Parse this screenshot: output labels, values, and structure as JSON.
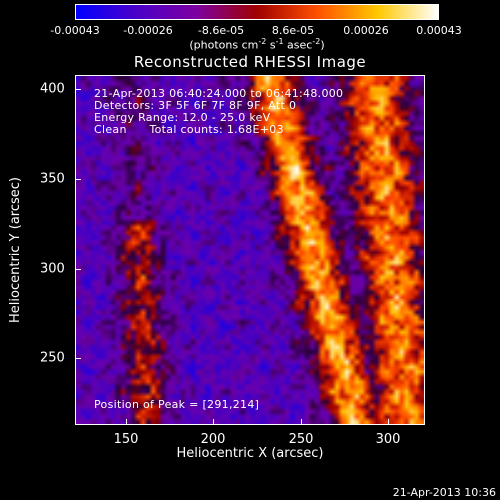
{
  "colorbar": {
    "ticks": [
      "-0.00043",
      "-0.00026",
      "-8.6e-05",
      "8.6e-05",
      "0.00026",
      "0.00043"
    ],
    "units_main": "(photons cm",
    "units_exp1": "-2",
    "units_mid": " s",
    "units_exp2": "-1",
    "units_mid2": " asec",
    "units_exp3": "-2",
    "units_end": ")",
    "colors": [
      "#0000ff",
      "#4b00c8",
      "#7d00a0",
      "#a00000",
      "#ff5000",
      "#ffc800",
      "#ffffff"
    ]
  },
  "title": "Reconstructed RHESSI Image",
  "info": {
    "line1": "21-Apr-2013 06:40:24.000 to 06:41:48.000",
    "line2": "Detectors: 3F 5F 6F 7F 8F 9F, Att 0",
    "line3": "Energy Range: 12.0 - 25.0 keV",
    "line4": "Clean      Total counts: 1.68E+03",
    "peak": "Position of Peak = [291,214]"
  },
  "axes": {
    "xlabel": "Heliocentric X (arcsec)",
    "ylabel": "Heliocentric Y (arcsec)",
    "xticks": [
      "150",
      "200",
      "250",
      "300"
    ],
    "yticks": [
      "400",
      "350",
      "300",
      "250"
    ],
    "xlim": [
      120,
      315
    ],
    "ylim": [
      215,
      410
    ]
  },
  "timestamp": "21-Apr-2013 10:36"
}
